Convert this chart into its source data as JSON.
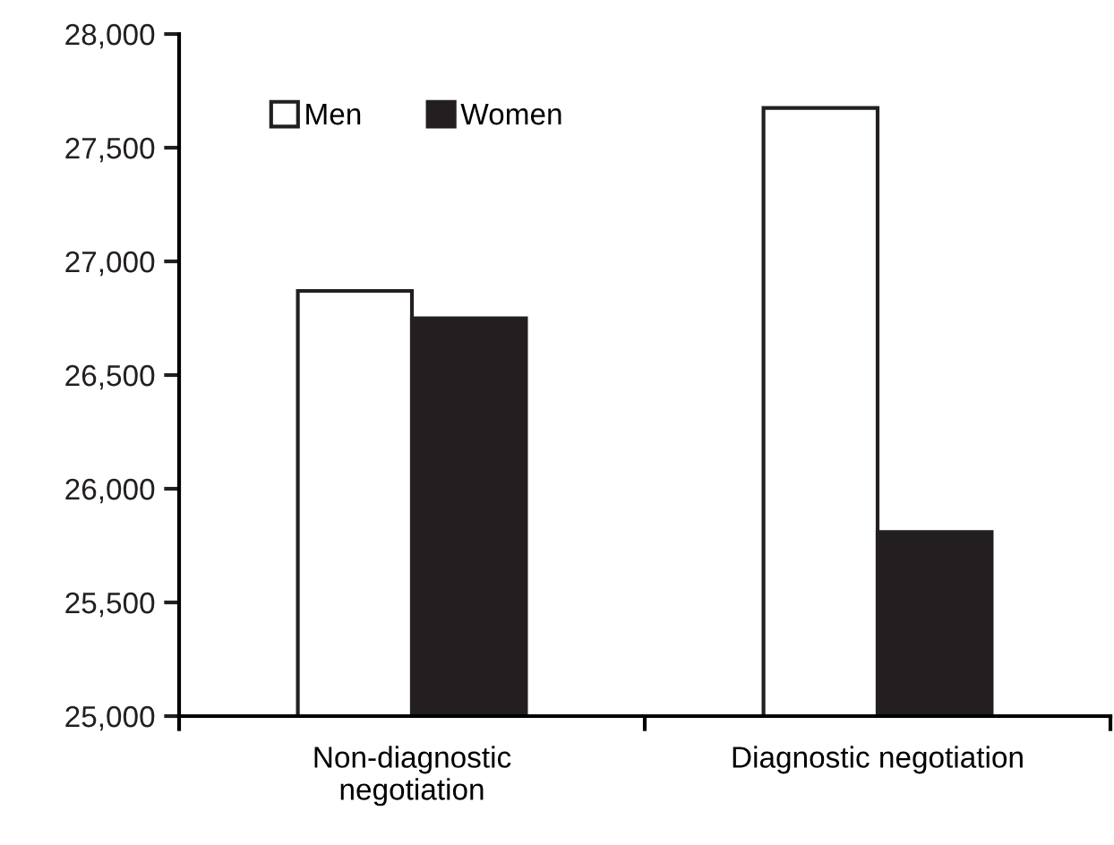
{
  "chart_data": {
    "type": "bar",
    "categories": [
      "Non-diagnostic\nnegotiation",
      "Diagnostic negotiation"
    ],
    "series": [
      {
        "name": "Men",
        "color": "#ffffff",
        "values": [
          26870,
          27675
        ]
      },
      {
        "name": "Women",
        "color": "#231f20",
        "values": [
          26750,
          25810
        ]
      }
    ],
    "ylim": [
      25000,
      28000
    ],
    "yticks": [
      {
        "value": 25000,
        "label": "25,000"
      },
      {
        "value": 25500,
        "label": "25,500"
      },
      {
        "value": 26000,
        "label": "26,000"
      },
      {
        "value": 26500,
        "label": "26,500"
      },
      {
        "value": 27000,
        "label": "27,000"
      },
      {
        "value": 27500,
        "label": "27,500"
      },
      {
        "value": 28000,
        "label": "28,000"
      }
    ],
    "grid": false,
    "legend": "top left"
  }
}
